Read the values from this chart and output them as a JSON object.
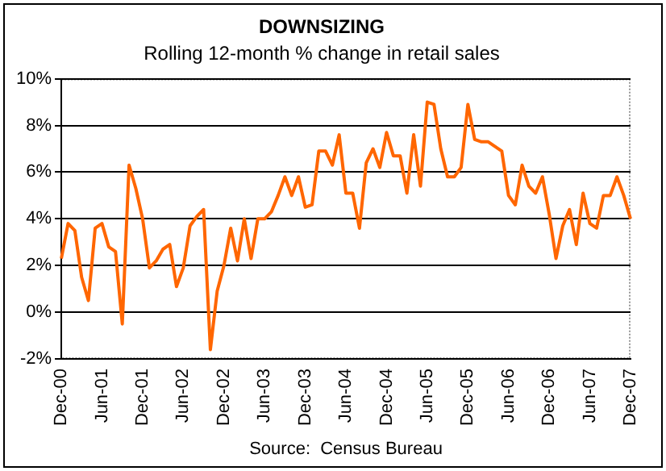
{
  "chart_data": {
    "type": "line",
    "title": "DOWNSIZING",
    "subtitle": "Rolling 12-month % change in retail sales",
    "annotations": [
      "Source:  Census Bureau"
    ],
    "categories": [
      "Dec-00",
      null,
      null,
      null,
      null,
      null,
      "Jun-01",
      null,
      null,
      null,
      null,
      null,
      "Dec-01",
      null,
      null,
      null,
      null,
      null,
      "Jun-02",
      null,
      null,
      null,
      null,
      null,
      "Dec-02",
      null,
      null,
      null,
      null,
      null,
      "Jun-03",
      null,
      null,
      null,
      null,
      null,
      "Dec-03",
      null,
      null,
      null,
      null,
      null,
      "Jun-04",
      null,
      null,
      null,
      null,
      null,
      "Dec-04",
      null,
      null,
      null,
      null,
      null,
      "Jun-05",
      null,
      null,
      null,
      null,
      null,
      "Dec-05",
      null,
      null,
      null,
      null,
      null,
      "Jun-06",
      null,
      null,
      null,
      null,
      null,
      "Dec-06",
      null,
      null,
      null,
      null,
      null,
      "Jun-07",
      null,
      null,
      null,
      null,
      null,
      "Dec-07"
    ],
    "series": [
      {
        "color": "#ff6600",
        "values": [
          2.3,
          3.8,
          3.5,
          1.5,
          0.5,
          3.6,
          3.8,
          2.8,
          2.6,
          -0.5,
          6.3,
          5.3,
          4.0,
          1.9,
          2.2,
          2.7,
          2.9,
          1.1,
          1.9,
          3.7,
          4.1,
          4.4,
          -1.6,
          0.9,
          2.0,
          3.6,
          2.2,
          4.0,
          2.3,
          4.0,
          4.0,
          4.3,
          5.0,
          5.8,
          5.0,
          5.8,
          4.5,
          4.6,
          6.9,
          6.9,
          6.3,
          7.6,
          5.1,
          5.1,
          3.6,
          6.4,
          7.0,
          6.2,
          7.7,
          6.7,
          6.7,
          5.1,
          7.6,
          5.4,
          9.0,
          8.9,
          7.0,
          5.8,
          5.8,
          6.2,
          8.9,
          7.4,
          7.3,
          7.3,
          7.1,
          6.9,
          5.0,
          4.6,
          6.3,
          5.4,
          5.1,
          5.8,
          4.2,
          2.3,
          3.7,
          4.4,
          2.9,
          5.1,
          3.8,
          3.6,
          5.0,
          5.0,
          5.8,
          5.0,
          4.0
        ]
      }
    ],
    "ylim": [
      -2,
      10
    ],
    "yticks": [
      {
        "value": -2,
        "label": "-2%"
      },
      {
        "value": 0,
        "label": "0%"
      },
      {
        "value": 2,
        "label": "2%"
      },
      {
        "value": 4,
        "label": "4%"
      },
      {
        "value": 6,
        "label": "6%"
      },
      {
        "value": 8,
        "label": "8%"
      },
      {
        "value": 10,
        "label": "10%"
      }
    ],
    "grid": "y",
    "marker": "none",
    "line_style": "solid"
  }
}
